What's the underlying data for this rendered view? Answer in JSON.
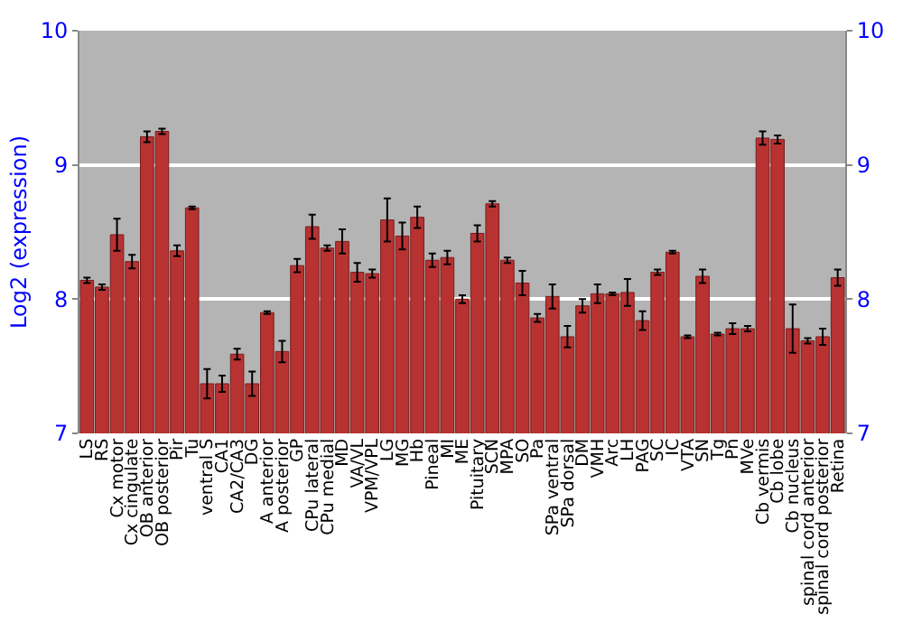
{
  "chart_data": {
    "type": "bar",
    "ylabel": "Log2 (expression)",
    "categories": [
      "LS",
      "RS",
      "Cx motor",
      "Cx cingulate",
      "OB anterior",
      "OB posterior",
      "Pir",
      "Tu",
      "ventral S",
      "CA1",
      "CA2/CA3",
      "DG",
      "A anterior",
      "A posterior",
      "GP",
      "CPu lateral",
      "CPu medial",
      "MD",
      "VA/VL",
      "VPM/VPL",
      "LG",
      "MG",
      "Hb",
      "Pineal",
      "MI",
      "ME",
      "Pituitary",
      "SCN",
      "MPA",
      "SO",
      "Pa",
      "SPa ventral",
      "SPa dorsal",
      "DM",
      "VMH",
      "Arc",
      "LH",
      "PAG",
      "SC",
      "IC",
      "VTA",
      "SN",
      "Tg",
      "Pn",
      "MVe",
      "Cb vermis",
      "Cb lobe",
      "Cb nucleus",
      "spinal cord anterior",
      "spinal cord posterior",
      "Retina"
    ],
    "values": [
      8.14,
      8.09,
      8.48,
      8.28,
      9.21,
      9.25,
      8.36,
      8.68,
      7.37,
      7.37,
      7.59,
      7.37,
      7.9,
      7.61,
      8.25,
      8.54,
      8.38,
      8.43,
      8.2,
      8.19,
      8.59,
      8.47,
      8.61,
      8.29,
      8.31,
      8.0,
      8.49,
      8.71,
      8.29,
      8.12,
      7.86,
      8.02,
      7.72,
      7.95,
      8.04,
      8.04,
      8.05,
      7.84,
      8.2,
      8.35,
      7.72,
      8.17,
      7.74,
      7.78,
      7.78,
      9.2,
      9.19,
      7.78,
      7.69,
      7.72,
      8.16
    ],
    "errors": [
      0.02,
      0.02,
      0.12,
      0.05,
      0.04,
      0.02,
      0.04,
      0.01,
      0.11,
      0.06,
      0.04,
      0.09,
      0.01,
      0.08,
      0.05,
      0.09,
      0.02,
      0.09,
      0.07,
      0.03,
      0.16,
      0.1,
      0.08,
      0.05,
      0.05,
      0.03,
      0.06,
      0.02,
      0.02,
      0.09,
      0.03,
      0.09,
      0.08,
      0.05,
      0.07,
      0.01,
      0.1,
      0.07,
      0.02,
      0.01,
      0.01,
      0.05,
      0.01,
      0.04,
      0.02,
      0.05,
      0.03,
      0.18,
      0.02,
      0.06,
      0.06
    ],
    "color": "#b83232",
    "ylim": [
      7,
      10
    ],
    "yticks": [
      7,
      8,
      9,
      10
    ],
    "y2lim": [
      7,
      10
    ],
    "y2ticks": [
      7,
      8,
      9,
      10
    ],
    "grid": "y"
  }
}
